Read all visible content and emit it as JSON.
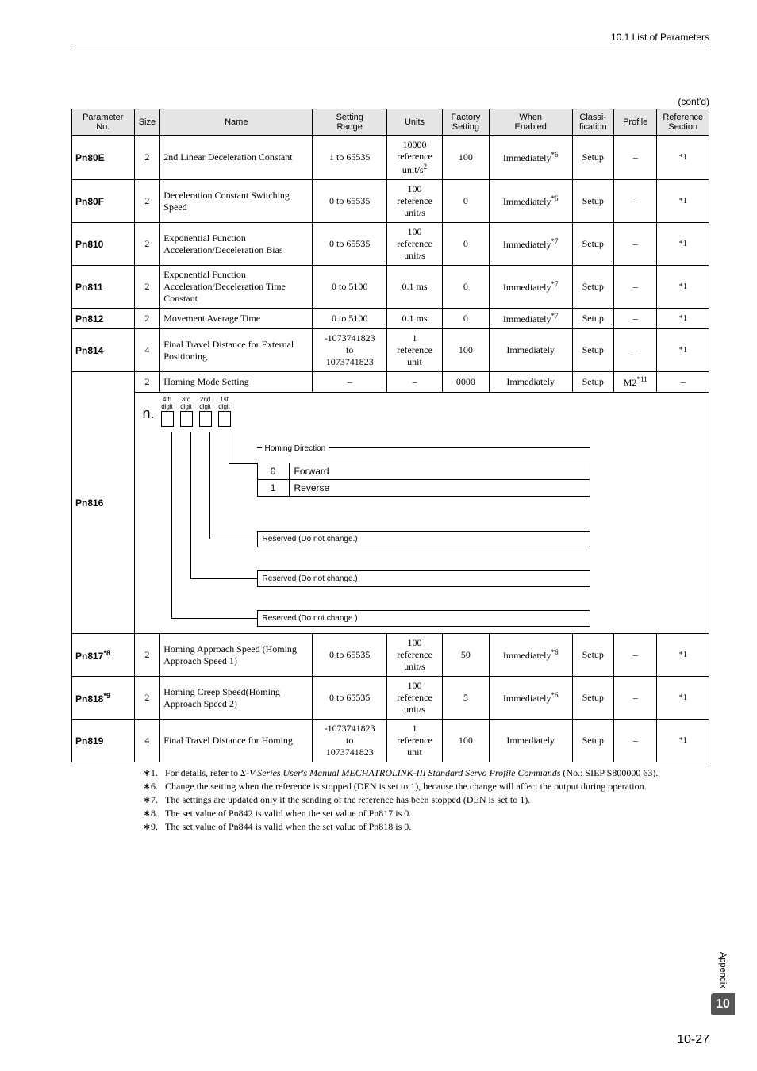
{
  "header": {
    "section": "10.1  List of Parameters"
  },
  "contd": "(cont'd)",
  "columns": {
    "pn": "Parameter\nNo.",
    "size": "Size",
    "name": "Name",
    "range": "Setting\nRange",
    "units": "Units",
    "factory": "Factory\nSetting",
    "when": "When\nEnabled",
    "classi": "Classi-\nfication",
    "profile": "Profile",
    "ref": "Reference\nSection"
  },
  "rows": [
    {
      "pn": "Pn80E",
      "size": "2",
      "name": "2nd Linear Deceleration Constant",
      "range": "1 to 65535",
      "units": "10000 reference unit/s²",
      "factory": "100",
      "when": "Immediately",
      "when_sup": "*6",
      "classi": "Setup",
      "profile": "–",
      "ref": "*1",
      "ref_small": true
    },
    {
      "pn": "Pn80F",
      "size": "2",
      "name": "Deceleration Constant Switching Speed",
      "range": "0 to 65535",
      "units": "100 reference unit/s",
      "factory": "0",
      "when": "Immediately",
      "when_sup": "*6",
      "classi": "Setup",
      "profile": "–",
      "ref": "*1",
      "ref_small": true
    },
    {
      "pn": "Pn810",
      "size": "2",
      "name": "Exponential Function Acceleration/Deceleration Bias",
      "range": "0 to 65535",
      "units": "100 reference unit/s",
      "factory": "0",
      "when": "Immediately",
      "when_sup": "*7",
      "classi": "Setup",
      "profile": "–",
      "ref": "*1",
      "ref_small": true
    },
    {
      "pn": "Pn811",
      "size": "2",
      "name": "Exponential Function Acceleration/Deceleration Time Constant",
      "range": "0 to 5100",
      "units": "0.1 ms",
      "factory": "0",
      "when": "Immediately",
      "when_sup": "*7",
      "classi": "Setup",
      "profile": "–",
      "ref": "*1",
      "ref_small": true
    },
    {
      "pn": "Pn812",
      "size": "2",
      "name": "Movement Average Time",
      "range": "0 to 5100",
      "units": "0.1 ms",
      "factory": "0",
      "when": "Immediately",
      "when_sup": "*7",
      "classi": "Setup",
      "profile": "–",
      "ref": "*1",
      "ref_small": true
    },
    {
      "pn": "Pn814",
      "size": "4",
      "name": "Final Travel Distance for External Positioning",
      "range": "-1073741823 to 1073741823",
      "units": "1 reference unit",
      "factory": "100",
      "when": "Immediately",
      "when_sup": "",
      "classi": "Setup",
      "profile": "–",
      "ref": "*1",
      "ref_small": true
    },
    {
      "pn": "",
      "size": "2",
      "name": "Homing Mode Setting",
      "range": "–",
      "units": "–",
      "factory": "0000",
      "when": "Immediately",
      "when_sup": "",
      "classi": "Setup",
      "profile": "M2",
      "profile_sup": "*11",
      "ref": "–",
      "ref_small": false
    }
  ],
  "pn816_label": "Pn816",
  "diagram": {
    "n": "n.",
    "digits": [
      "4th digit",
      "3rd digit",
      "2nd digit",
      "1st digit"
    ],
    "homing_title": "Homing Direction",
    "homing_rows": [
      [
        "0",
        "Forward"
      ],
      [
        "1",
        "Reverse"
      ]
    ],
    "reserved": "Reserved (Do not change.)"
  },
  "rows2": [
    {
      "pn": "Pn817",
      "pn_sup": "*8",
      "size": "2",
      "name": "Homing Approach Speed (Homing Approach Speed 1)",
      "range": "0 to 65535",
      "units": "100 reference unit/s",
      "factory": "50",
      "when": "Immediately",
      "when_sup": "*6",
      "classi": "Setup",
      "profile": "–",
      "ref": "*1"
    },
    {
      "pn": "Pn818",
      "pn_sup": "*9",
      "size": "2",
      "name": "Homing Creep Speed(Homing Approach Speed 2)",
      "range": "0 to 65535",
      "units": "100 reference unit/s",
      "factory": "5",
      "when": "Immediately",
      "when_sup": "*6",
      "classi": "Setup",
      "profile": "–",
      "ref": "*1"
    },
    {
      "pn": "Pn819",
      "pn_sup": "",
      "size": "4",
      "name": "Final Travel Distance for Homing",
      "range": "-1073741823 to 1073741823",
      "units": "1 reference unit",
      "factory": "100",
      "when": "Immediately",
      "when_sup": "",
      "classi": "Setup",
      "profile": "–",
      "ref": "*1"
    }
  ],
  "footnotes": [
    {
      "label": "∗1.",
      "text_pre": "For details, refer to ",
      "text_ital": "Σ-V Series User's Manual MECHATROLINK-III Standard Servo Profile Commands",
      "text_post": " (No.: SIEP S800000 63)."
    },
    {
      "label": "∗6.",
      "text": "Change the setting when the reference is stopped (DEN is set to 1), because the change will affect the output during operation."
    },
    {
      "label": "∗7.",
      "text": "The settings are updated only if the sending of the reference has been stopped (DEN is set to 1)."
    },
    {
      "label": "∗8.",
      "text": "The set value of Pn842 is valid when the set value of Pn817 is 0."
    },
    {
      "label": "∗9.",
      "text": "The set value of Pn844 is valid when the set value of Pn818 is 0."
    }
  ],
  "side": {
    "appendix": "Appendix",
    "chapter": "10"
  },
  "page_number": "10-27"
}
